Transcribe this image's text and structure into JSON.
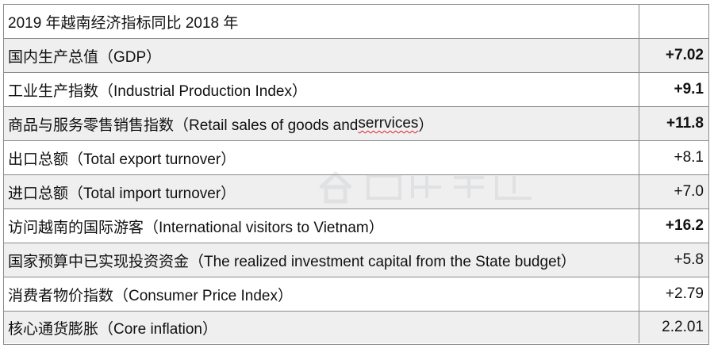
{
  "title": "2019 年越南经济指标同比 2018 年",
  "rows": [
    {
      "label": "国内生产总值（GDP）",
      "value": "+7.02"
    },
    {
      "label": "工业生产指数（Industrial Production Index）",
      "value": "+9.1"
    },
    {
      "label_pre": "商品与服务零售销售指数（Retail sales of goods and ",
      "label_flag": "serrvices",
      "label_post": "）",
      "value": "+11.8"
    },
    {
      "label": "出口总额（Total export turnover）",
      "value": "+8.1"
    },
    {
      "label": "进口总额（Total import turnover）",
      "value": "+7.0"
    },
    {
      "label": "访问越南的国际游客（International visitors to Vietnam）",
      "value": "+16.2"
    },
    {
      "label": "国家预算中已实现投资资金（The realized investment capital from the State budget）",
      "value": "+5.8"
    },
    {
      "label": "消费者物价指数（Consumer Price Index）",
      "value": "+2.79"
    },
    {
      "label": "核心通货膨胀（Core inflation）",
      "value": "2.2.01"
    }
  ],
  "watermark_icon": "house-logo-icon"
}
